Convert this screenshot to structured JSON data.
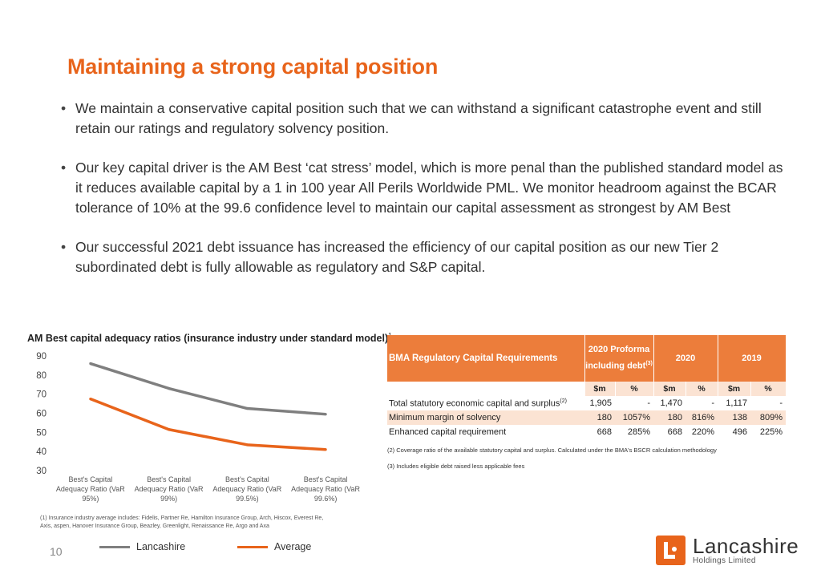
{
  "title": "Maintaining a strong capital position",
  "bullets": [
    "We maintain a conservative capital position such that we can withstand a significant catastrophe event and still retain our ratings and regulatory solvency position.",
    "Our key capital driver is the AM Best ‘cat stress’ model, which is more penal than the published standard model as it reduces available capital by a 1 in 100 year All Perils Worldwide PML. We monitor headroom against the BCAR tolerance of 10% at the 99.6 confidence level to maintain our capital assessment as strongest by AM Best",
    "Our successful 2021 debt issuance has increased the efficiency of our capital position as our new Tier 2 subordinated debt is fully allowable as regulatory and S&P capital."
  ],
  "chart_data": {
    "type": "line",
    "title": "AM Best capital adequacy ratios (insurance industry under standard model)",
    "title_note": "1",
    "categories": [
      [
        "Best's Capital",
        "Adequacy Ratio (VaR",
        "95%)"
      ],
      [
        "Best's Capital",
        "Adequacy Ratio (VaR",
        "99%)"
      ],
      [
        "Best's Capital",
        "Adequacy Ratio (VaR",
        "99.5%)"
      ],
      [
        "Best's Capital",
        "Adequacy Ratio (VaR",
        "99.6%)"
      ]
    ],
    "series": [
      {
        "name": "Lancashire",
        "color": "#7f7f7f",
        "values": [
          86,
          73,
          62.5,
          59.5
        ]
      },
      {
        "name": "Average",
        "color": "#e8641b",
        "values": [
          67.5,
          51.5,
          43.5,
          41
        ]
      }
    ],
    "ylim": [
      30,
      90
    ],
    "yticks": [
      30,
      40,
      50,
      60,
      70,
      80,
      90
    ],
    "grid": false,
    "legend": "bottom"
  },
  "chart_footnote": "(1) Insurance industry average includes: Fidelis, Partner Re, Hamilton Insurance Group, Arch, Hiscox, Everest Re, Axis, aspen, Hanover Insurance Group, Beazley, Greenlight, Renaissance Re, Argo and Axa",
  "page_number": "10",
  "table": {
    "header_label": "BMA Regulatory Capital Requirements",
    "col_2020_proforma": "2020 Proforma including debt",
    "col_2020_proforma_note": "(3)",
    "col_2020": "2020",
    "col_2019": "2019",
    "units": [
      "$m",
      "%",
      "$m",
      "%",
      "$m",
      "%"
    ],
    "rows": [
      {
        "name": "Total statutory economic capital and surplus",
        "note": "(2)",
        "values": [
          "1,905",
          "-",
          "1,470",
          "-",
          "1,117",
          "-"
        ]
      },
      {
        "name": "Minimum margin of solvency",
        "note": "",
        "values": [
          "180",
          "1057%",
          "180",
          "816%",
          "138",
          "809%"
        ]
      },
      {
        "name": "Enhanced capital requirement",
        "note": "",
        "values": [
          "668",
          "285%",
          "668",
          "220%",
          "496",
          "225%"
        ]
      }
    ],
    "notes": [
      "(2) Coverage ratio of the available statutory capital and surplus. Calculated under the BMA's BSCR calculation methodology",
      "(3)  Includes  eligible debt raised less  applicable fees"
    ]
  },
  "logo": {
    "name": "Lancashire",
    "subtitle": "Holdings Limited",
    "color": "#e8641b"
  }
}
